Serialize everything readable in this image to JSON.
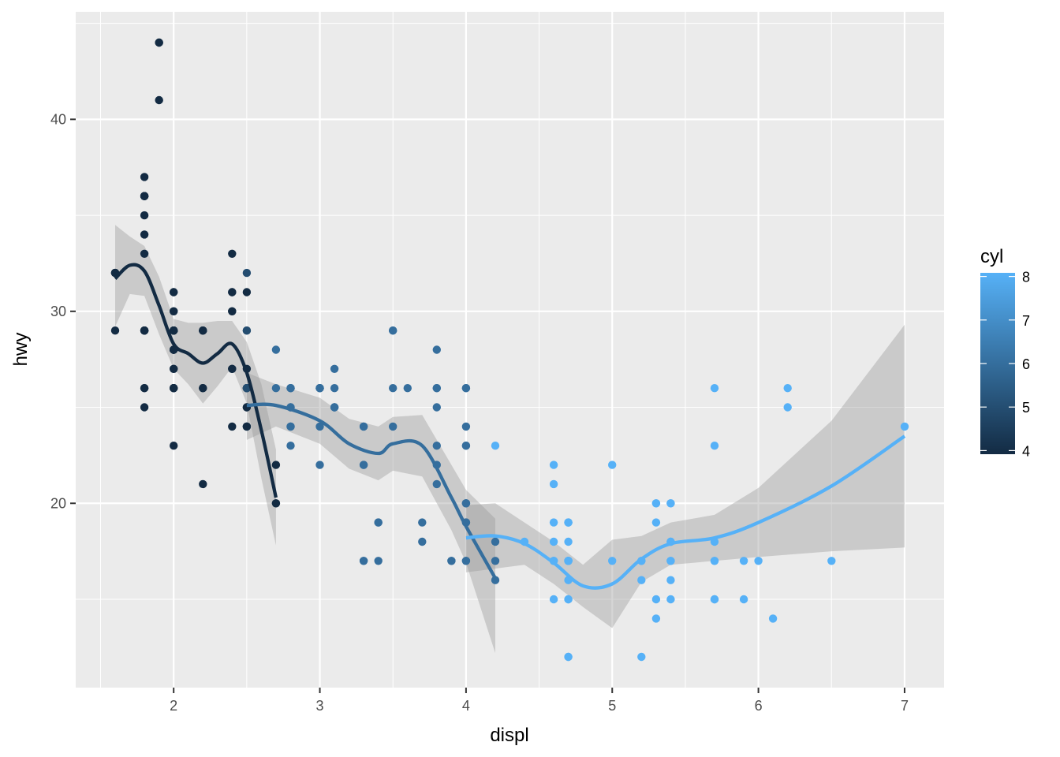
{
  "chart_data": {
    "type": "scatter",
    "title": "",
    "xlabel": "displ",
    "ylabel": "hwy",
    "xlim": [
      1.33,
      7.27
    ],
    "ylim": [
      10.4,
      45.6
    ],
    "x_ticks": [
      2,
      3,
      4,
      5,
      6,
      7
    ],
    "y_ticks": [
      20,
      30,
      40
    ],
    "grid": true,
    "colors": {
      "panel": "#ebebeb",
      "grid": "#ffffff",
      "ribbon": "#999999",
      "low": "#132b43",
      "high": "#56b1f7"
    },
    "legend": {
      "title": "cyl",
      "position": "right",
      "ticks": [
        4,
        5,
        6,
        7,
        8
      ],
      "range": [
        4,
        8
      ]
    },
    "points": [
      [
        1.8,
        29,
        4
      ],
      [
        1.8,
        29,
        4
      ],
      [
        2.0,
        31,
        4
      ],
      [
        2.0,
        30,
        4
      ],
      [
        2.8,
        26,
        6
      ],
      [
        2.8,
        26,
        6
      ],
      [
        3.1,
        27,
        6
      ],
      [
        1.8,
        26,
        4
      ],
      [
        1.8,
        25,
        4
      ],
      [
        2.0,
        28,
        4
      ],
      [
        2.0,
        27,
        4
      ],
      [
        2.8,
        25,
        6
      ],
      [
        2.8,
        25,
        6
      ],
      [
        3.1,
        25,
        6
      ],
      [
        3.1,
        25,
        6
      ],
      [
        2.8,
        24,
        6
      ],
      [
        3.1,
        25,
        6
      ],
      [
        4.2,
        23,
        8
      ],
      [
        5.3,
        20,
        8
      ],
      [
        5.3,
        15,
        8
      ],
      [
        5.3,
        20,
        8
      ],
      [
        5.7,
        17,
        8
      ],
      [
        6.0,
        17,
        8
      ],
      [
        5.7,
        26,
        8
      ],
      [
        5.7,
        23,
        8
      ],
      [
        6.2,
        26,
        8
      ],
      [
        6.2,
        25,
        8
      ],
      [
        7.0,
        24,
        8
      ],
      [
        5.3,
        19,
        8
      ],
      [
        5.3,
        14,
        8
      ],
      [
        5.7,
        15,
        8
      ],
      [
        6.5,
        17,
        8
      ],
      [
        2.4,
        27,
        4
      ],
      [
        2.4,
        30,
        4
      ],
      [
        3.1,
        26,
        6
      ],
      [
        3.5,
        29,
        6
      ],
      [
        3.6,
        26,
        6
      ],
      [
        2.4,
        24,
        4
      ],
      [
        3.0,
        24,
        6
      ],
      [
        3.3,
        22,
        6
      ],
      [
        3.3,
        22,
        6
      ],
      [
        3.3,
        24,
        6
      ],
      [
        3.3,
        24,
        6
      ],
      [
        3.3,
        17,
        6
      ],
      [
        3.8,
        22,
        6
      ],
      [
        3.8,
        21,
        6
      ],
      [
        3.8,
        23,
        6
      ],
      [
        4.0,
        23,
        6
      ],
      [
        3.7,
        19,
        6
      ],
      [
        3.7,
        18,
        6
      ],
      [
        3.9,
        17,
        6
      ],
      [
        3.9,
        17,
        6
      ],
      [
        4.7,
        19,
        8
      ],
      [
        4.7,
        19,
        8
      ],
      [
        5.2,
        12,
        8
      ],
      [
        5.2,
        17,
        8
      ],
      [
        5.7,
        17,
        8
      ],
      [
        5.9,
        17,
        8
      ],
      [
        4.7,
        17,
        8
      ],
      [
        4.7,
        17,
        8
      ],
      [
        4.7,
        12,
        8
      ],
      [
        5.2,
        17,
        8
      ],
      [
        5.2,
        16,
        8
      ],
      [
        5.7,
        18,
        8
      ],
      [
        5.9,
        15,
        8
      ],
      [
        4.7,
        16,
        8
      ],
      [
        4.7,
        17,
        8
      ],
      [
        4.7,
        15,
        8
      ],
      [
        4.7,
        17,
        8
      ],
      [
        4.7,
        12,
        8
      ],
      [
        4.7,
        17,
        8
      ],
      [
        4.6,
        17,
        8
      ],
      [
        5.4,
        16,
        8
      ],
      [
        5.4,
        18,
        8
      ],
      [
        5.4,
        15,
        8
      ],
      [
        4.0,
        17,
        6
      ],
      [
        4.0,
        19,
        6
      ],
      [
        4.0,
        17,
        6
      ],
      [
        4.0,
        19,
        6
      ],
      [
        4.6,
        19,
        8
      ],
      [
        5.0,
        17,
        8
      ],
      [
        4.2,
        17,
        6
      ],
      [
        4.2,
        16,
        6
      ],
      [
        4.6,
        17,
        8
      ],
      [
        4.6,
        15,
        8
      ],
      [
        4.6,
        17,
        8
      ],
      [
        5.4,
        17,
        8
      ],
      [
        5.4,
        20,
        8
      ],
      [
        3.8,
        26,
        6
      ],
      [
        3.8,
        25,
        6
      ],
      [
        4.0,
        26,
        6
      ],
      [
        4.0,
        24,
        6
      ],
      [
        4.6,
        21,
        8
      ],
      [
        5.0,
        22,
        8
      ],
      [
        5.4,
        20,
        8
      ],
      [
        1.8,
        37,
        4
      ],
      [
        1.8,
        35,
        4
      ],
      [
        1.8,
        36,
        4
      ],
      [
        1.8,
        36,
        4
      ],
      [
        1.8,
        36,
        4
      ],
      [
        1.8,
        29,
        4
      ],
      [
        1.8,
        26,
        4
      ],
      [
        2.0,
        29,
        4
      ],
      [
        2.0,
        29,
        4
      ],
      [
        2.0,
        28,
        4
      ],
      [
        2.4,
        27,
        4
      ],
      [
        2.5,
        24,
        5
      ],
      [
        2.5,
        24,
        5
      ],
      [
        1.6,
        32,
        4
      ],
      [
        1.6,
        32,
        4
      ],
      [
        1.6,
        32,
        4
      ],
      [
        1.6,
        29,
        4
      ],
      [
        1.6,
        32,
        4
      ],
      [
        1.8,
        34,
        4
      ],
      [
        1.8,
        36,
        4
      ],
      [
        1.8,
        36,
        4
      ],
      [
        2.0,
        29,
        4
      ],
      [
        2.0,
        26,
        4
      ],
      [
        2.0,
        27,
        4
      ],
      [
        2.0,
        30,
        4
      ],
      [
        2.0,
        31,
        4
      ],
      [
        2.0,
        26,
        4
      ],
      [
        2.0,
        26,
        4
      ],
      [
        2.7,
        28,
        6
      ],
      [
        2.7,
        26,
        6
      ],
      [
        3.5,
        29,
        6
      ],
      [
        3.8,
        28,
        6
      ],
      [
        3.8,
        26,
        6
      ],
      [
        4.0,
        26,
        6
      ],
      [
        4.0,
        23,
        6
      ],
      [
        4.6,
        22,
        8
      ],
      [
        4.7,
        19,
        8
      ],
      [
        3.4,
        19,
        6
      ],
      [
        3.4,
        17,
        6
      ],
      [
        4.0,
        20,
        6
      ],
      [
        4.7,
        15,
        8
      ],
      [
        4.7,
        18,
        8
      ],
      [
        4.7,
        17,
        8
      ],
      [
        5.7,
        15,
        8
      ],
      [
        6.1,
        14,
        8
      ],
      [
        4.0,
        20,
        6
      ],
      [
        4.2,
        18,
        6
      ],
      [
        4.4,
        18,
        8
      ],
      [
        4.6,
        18,
        8
      ],
      [
        5.4,
        18,
        8
      ],
      [
        5.4,
        17,
        8
      ],
      [
        2.5,
        26,
        4
      ],
      [
        2.5,
        25,
        4
      ],
      [
        2.5,
        26,
        4
      ],
      [
        2.5,
        24,
        4
      ],
      [
        2.2,
        21,
        4
      ],
      [
        2.2,
        26,
        4
      ],
      [
        2.5,
        27,
        4
      ],
      [
        2.5,
        25,
        4
      ],
      [
        2.2,
        26,
        4
      ],
      [
        2.2,
        29,
        4
      ],
      [
        2.4,
        31,
        4
      ],
      [
        2.4,
        31,
        4
      ],
      [
        3.0,
        26,
        6
      ],
      [
        3.0,
        26,
        6
      ],
      [
        3.5,
        26,
        6
      ],
      [
        2.2,
        29,
        4
      ],
      [
        2.2,
        29,
        4
      ],
      [
        2.4,
        30,
        4
      ],
      [
        2.4,
        33,
        4
      ],
      [
        3.0,
        26,
        6
      ],
      [
        3.0,
        26,
        6
      ],
      [
        3.5,
        24,
        6
      ],
      [
        3.0,
        22,
        6
      ],
      [
        3.4,
        19,
        6
      ],
      [
        4.0,
        20,
        6
      ],
      [
        4.7,
        17,
        8
      ],
      [
        2.7,
        20,
        4
      ],
      [
        2.7,
        20,
        4
      ],
      [
        2.7,
        22,
        4
      ],
      [
        2.8,
        23,
        6
      ],
      [
        3.3,
        17,
        6
      ],
      [
        1.8,
        29,
        4
      ],
      [
        1.8,
        29,
        4
      ],
      [
        2.0,
        29,
        4
      ],
      [
        2.0,
        28,
        4
      ],
      [
        2.8,
        24,
        6
      ],
      [
        1.9,
        44,
        4
      ],
      [
        2.0,
        29,
        4
      ],
      [
        2.5,
        26,
        5
      ],
      [
        1.9,
        41,
        4
      ],
      [
        2.0,
        29,
        4
      ],
      [
        2.0,
        26,
        4
      ],
      [
        2.5,
        26,
        5
      ],
      [
        2.5,
        26,
        5
      ],
      [
        2.0,
        28,
        4
      ],
      [
        2.0,
        26,
        4
      ],
      [
        2.0,
        29,
        4
      ],
      [
        2.8,
        26,
        6
      ],
      [
        1.9,
        44,
        4
      ],
      [
        2.0,
        28,
        4
      ],
      [
        2.5,
        29,
        5
      ],
      [
        2.0,
        29,
        4
      ],
      [
        2.0,
        28,
        4
      ],
      [
        2.5,
        26,
        5
      ],
      [
        2.0,
        23,
        4
      ],
      [
        2.5,
        31,
        4
      ],
      [
        2.5,
        32,
        5
      ],
      [
        1.8,
        29,
        4
      ],
      [
        1.8,
        33,
        4
      ],
      [
        2.0,
        29,
        4
      ],
      [
        2.5,
        29,
        5
      ]
    ],
    "smooths": [
      {
        "cyl": 4,
        "x": [
          1.6,
          1.7,
          1.8,
          1.9,
          2.0,
          2.1,
          2.2,
          2.3,
          2.4,
          2.5,
          2.6,
          2.7
        ],
        "y": [
          31.7,
          32.4,
          32.1,
          30.3,
          28.3,
          27.8,
          27.3,
          27.8,
          28.3,
          26.8,
          23.8,
          20.3
        ],
        "lo": [
          29.2,
          30.9,
          30.8,
          28.8,
          27.0,
          26.2,
          25.2,
          26.1,
          27.1,
          25.2,
          21.3,
          17.8
        ],
        "hi": [
          34.5,
          33.9,
          33.4,
          31.8,
          29.6,
          29.4,
          29.4,
          29.5,
          29.5,
          28.4,
          26.2,
          22.8
        ]
      },
      {
        "cyl": 6,
        "x": [
          2.5,
          2.7,
          3.0,
          3.2,
          3.4,
          3.5,
          3.7,
          3.9,
          4.0,
          4.2
        ],
        "y": [
          25.1,
          25.1,
          24.3,
          23.1,
          22.6,
          23.1,
          23.0,
          20.3,
          18.8,
          16.1
        ],
        "lo": [
          23.3,
          24.0,
          23.1,
          21.8,
          21.2,
          21.7,
          21.4,
          18.6,
          16.9,
          12.2
        ],
        "hi": [
          26.8,
          26.2,
          25.5,
          24.4,
          24.0,
          24.5,
          24.6,
          22.0,
          20.7,
          19.2
        ]
      },
      {
        "cyl": 8,
        "x": [
          4.0,
          4.2,
          4.4,
          4.6,
          4.8,
          5.0,
          5.2,
          5.4,
          5.7,
          6.0,
          6.5,
          7.0
        ],
        "y": [
          18.2,
          18.3,
          17.9,
          16.9,
          15.7,
          15.8,
          17.1,
          17.9,
          18.2,
          19.0,
          20.9,
          23.5
        ],
        "lo": [
          16.4,
          16.6,
          16.8,
          15.8,
          14.6,
          13.5,
          15.9,
          16.8,
          17.0,
          17.2,
          17.5,
          17.7
        ],
        "hi": [
          19.9,
          20.0,
          19.0,
          18.0,
          16.8,
          18.1,
          18.3,
          19.0,
          19.4,
          20.8,
          24.3,
          29.3
        ]
      }
    ]
  }
}
